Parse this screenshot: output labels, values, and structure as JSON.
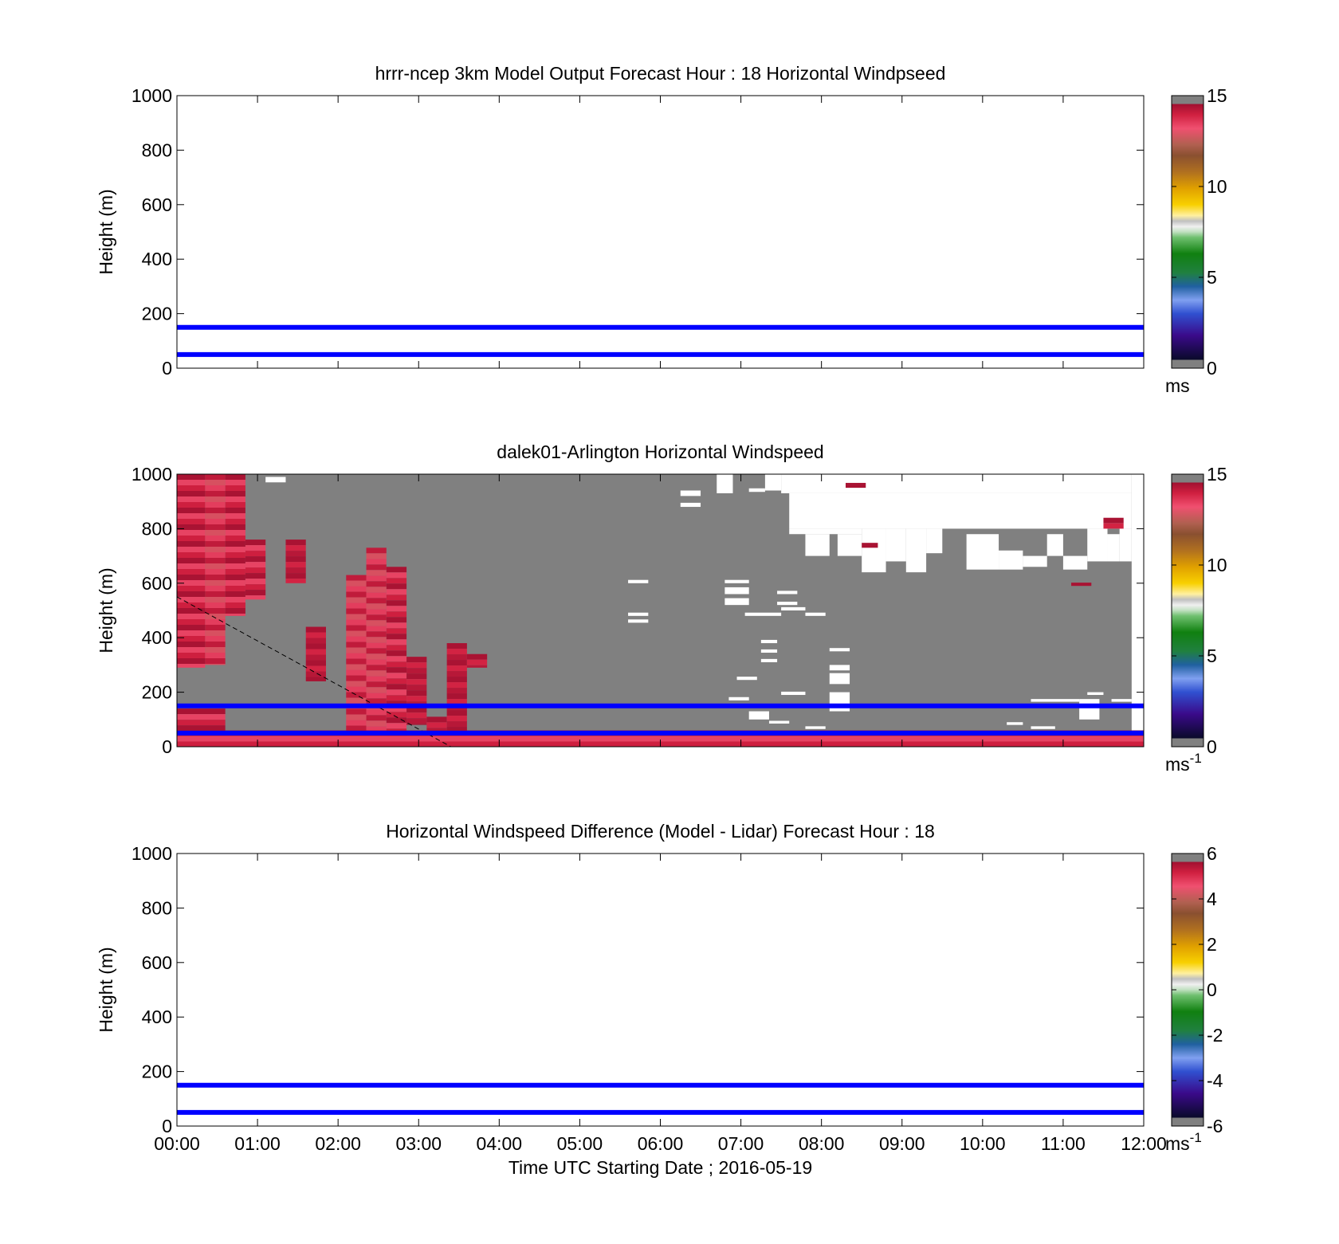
{
  "figure": {
    "xlabel": "Time UTC  Starting Date ; 2016-05-19",
    "x_tick_labels": [
      "00:00",
      "01:00",
      "02:00",
      "03:00",
      "04:00",
      "05:00",
      "06:00",
      "07:00",
      "08:00",
      "09:00",
      "10:00",
      "11:00",
      "12:00"
    ]
  },
  "chart_data": [
    {
      "type": "heatmap",
      "title": "hrrr-ncep 3km Model Output   Forecast Hour : 18 Horizontal Windpseed",
      "ylabel": "Height (m)",
      "ylim": [
        0,
        1000
      ],
      "yticks": [
        0,
        200,
        400,
        600,
        800,
        1000
      ],
      "xlim_hours": [
        0,
        12
      ],
      "colorbar": {
        "range": [
          0,
          15
        ],
        "ticks": [
          0,
          5,
          10,
          15
        ],
        "unit": "ms",
        "unit_superscript": ""
      },
      "reference_lines_m": [
        50,
        150
      ],
      "cells": []
    },
    {
      "type": "heatmap",
      "title": "dalek01-Arlington  Horizontal Windspeed",
      "ylabel": "Height (m)",
      "ylim": [
        0,
        1000
      ],
      "yticks": [
        0,
        200,
        400,
        600,
        800,
        1000
      ],
      "xlim_hours": [
        0,
        12
      ],
      "colorbar": {
        "range": [
          0,
          15
        ],
        "ticks": [
          0,
          5,
          10,
          15
        ],
        "unit": "ms",
        "unit_superscript": "-1"
      },
      "reference_lines_m": [
        50,
        150
      ],
      "background_region": {
        "x": [
          0,
          11.85
        ],
        "y": [
          0,
          1000
        ],
        "color": "#808080"
      },
      "white_gaps": [
        {
          "x": [
            1.1,
            1.35
          ],
          "y": [
            970,
            990
          ]
        },
        {
          "x": [
            6.25,
            6.5
          ],
          "y": [
            920,
            940
          ]
        },
        {
          "x": [
            6.25,
            6.5
          ],
          "y": [
            880,
            895
          ]
        },
        {
          "x": [
            6.7,
            6.9
          ],
          "y": [
            930,
            1000
          ]
        },
        {
          "x": [
            7.1,
            7.3
          ],
          "y": [
            935,
            948
          ]
        },
        {
          "x": [
            7.3,
            7.5
          ],
          "y": [
            940,
            1000
          ]
        },
        {
          "x": [
            7.5,
            11.85
          ],
          "y": [
            930,
            1000
          ]
        },
        {
          "x": [
            7.6,
            11.85
          ],
          "y": [
            800,
            930
          ]
        },
        {
          "x": [
            7.6,
            8.5
          ],
          "y": [
            780,
            800
          ]
        },
        {
          "x": [
            7.8,
            8.1
          ],
          "y": [
            700,
            780
          ]
        },
        {
          "x": [
            8.2,
            8.5
          ],
          "y": [
            700,
            780
          ]
        },
        {
          "x": [
            8.5,
            8.8
          ],
          "y": [
            640,
            800
          ]
        },
        {
          "x": [
            8.8,
            9.05
          ],
          "y": [
            680,
            800
          ]
        },
        {
          "x": [
            9.05,
            9.3
          ],
          "y": [
            640,
            800
          ]
        },
        {
          "x": [
            9.3,
            9.5
          ],
          "y": [
            710,
            800
          ]
        },
        {
          "x": [
            9.8,
            10.2
          ],
          "y": [
            650,
            780
          ]
        },
        {
          "x": [
            10.2,
            10.5
          ],
          "y": [
            650,
            720
          ]
        },
        {
          "x": [
            10.5,
            10.8
          ],
          "y": [
            660,
            700
          ]
        },
        {
          "x": [
            10.8,
            11.0
          ],
          "y": [
            700,
            780
          ]
        },
        {
          "x": [
            11.0,
            11.3
          ],
          "y": [
            650,
            700
          ]
        },
        {
          "x": [
            11.3,
            11.55
          ],
          "y": [
            680,
            800
          ]
        },
        {
          "x": [
            11.55,
            11.7
          ],
          "y": [
            680,
            780
          ]
        },
        {
          "x": [
            11.7,
            11.85
          ],
          "y": [
            680,
            800
          ]
        },
        {
          "x": [
            7.05,
            7.5
          ],
          "y": [
            480,
            492
          ]
        },
        {
          "x": [
            7.5,
            7.8
          ],
          "y": [
            500,
            512
          ]
        },
        {
          "x": [
            7.8,
            8.05
          ],
          "y": [
            480,
            492
          ]
        },
        {
          "x": [
            6.8,
            7.1
          ],
          "y": [
            520,
            545
          ]
        },
        {
          "x": [
            6.8,
            7.1
          ],
          "y": [
            560,
            585
          ]
        },
        {
          "x": [
            6.8,
            7.1
          ],
          "y": [
            600,
            612
          ]
        },
        {
          "x": [
            5.6,
            5.85
          ],
          "y": [
            600,
            612
          ]
        },
        {
          "x": [
            5.6,
            5.85
          ],
          "y": [
            480,
            492
          ]
        },
        {
          "x": [
            5.6,
            5.85
          ],
          "y": [
            455,
            467
          ]
        },
        {
          "x": [
            7.45,
            7.7
          ],
          "y": [
            560,
            572
          ]
        },
        {
          "x": [
            7.45,
            7.7
          ],
          "y": [
            520,
            532
          ]
        },
        {
          "x": [
            7.25,
            7.45
          ],
          "y": [
            380,
            392
          ]
        },
        {
          "x": [
            7.25,
            7.45
          ],
          "y": [
            345,
            357
          ]
        },
        {
          "x": [
            7.25,
            7.45
          ],
          "y": [
            310,
            322
          ]
        },
        {
          "x": [
            6.95,
            7.2
          ],
          "y": [
            245,
            257
          ]
        },
        {
          "x": [
            7.5,
            7.8
          ],
          "y": [
            190,
            202
          ]
        },
        {
          "x": [
            8.1,
            8.35
          ],
          "y": [
            130,
            200
          ]
        },
        {
          "x": [
            8.1,
            8.35
          ],
          "y": [
            230,
            270
          ]
        },
        {
          "x": [
            8.1,
            8.35
          ],
          "y": [
            280,
            300
          ]
        },
        {
          "x": [
            8.1,
            8.35
          ],
          "y": [
            350,
            362
          ]
        },
        {
          "x": [
            6.85,
            7.1
          ],
          "y": [
            170,
            182
          ]
        },
        {
          "x": [
            7.1,
            7.35
          ],
          "y": [
            100,
            130
          ]
        },
        {
          "x": [
            7.35,
            7.6
          ],
          "y": [
            85,
            95
          ]
        },
        {
          "x": [
            7.8,
            8.05
          ],
          "y": [
            65,
            75
          ]
        },
        {
          "x": [
            10.6,
            11.2
          ],
          "y": [
            165,
            175
          ]
        },
        {
          "x": [
            11.2,
            11.45
          ],
          "y": [
            100,
            175
          ]
        },
        {
          "x": [
            11.3,
            11.5
          ],
          "y": [
            190,
            200
          ]
        },
        {
          "x": [
            11.6,
            11.85
          ],
          "y": [
            165,
            175
          ]
        },
        {
          "x": [
            10.3,
            10.5
          ],
          "y": [
            80,
            90
          ]
        },
        {
          "x": [
            10.6,
            10.9
          ],
          "y": [
            65,
            75
          ]
        }
      ],
      "cells": [
        {
          "x": [
            0,
            0.35
          ],
          "y": [
            290,
            1000
          ],
          "value": 14
        },
        {
          "x": [
            0.35,
            0.6
          ],
          "y": [
            300,
            1000
          ],
          "value": 13.5
        },
        {
          "x": [
            0.6,
            0.85
          ],
          "y": [
            480,
            1000
          ],
          "value": 14
        },
        {
          "x": [
            0.85,
            1.1
          ],
          "y": [
            540,
            760
          ],
          "value": 14
        },
        {
          "x": [
            1.35,
            1.6
          ],
          "y": [
            600,
            760
          ],
          "value": 14.5
        },
        {
          "x": [
            1.6,
            1.85
          ],
          "y": [
            240,
            440
          ],
          "value": 14.5
        },
        {
          "x": [
            2.1,
            2.35
          ],
          "y": [
            20,
            630
          ],
          "value": 13.5
        },
        {
          "x": [
            2.35,
            2.6
          ],
          "y": [
            20,
            730
          ],
          "value": 13.5
        },
        {
          "x": [
            2.6,
            2.85
          ],
          "y": [
            20,
            660
          ],
          "value": 14
        },
        {
          "x": [
            2.85,
            3.1
          ],
          "y": [
            80,
            330
          ],
          "value": 14.5
        },
        {
          "x": [
            3.1,
            3.35
          ],
          "y": [
            60,
            110
          ],
          "value": 14.5
        },
        {
          "x": [
            3.35,
            3.6
          ],
          "y": [
            20,
            380
          ],
          "value": 14.5
        },
        {
          "x": [
            3.6,
            3.85
          ],
          "y": [
            290,
            340
          ],
          "value": 14.5
        },
        {
          "x": [
            0,
            0.6
          ],
          "y": [
            20,
            140
          ],
          "value": 14
        },
        {
          "x": [
            0,
            12
          ],
          "y": [
            0,
            60
          ],
          "value": 14
        },
        {
          "x": [
            8.5,
            8.7
          ],
          "y": [
            730,
            748
          ],
          "value": 14.5
        },
        {
          "x": [
            8.3,
            8.55
          ],
          "y": [
            950,
            968
          ],
          "value": 14.5
        },
        {
          "x": [
            11.5,
            11.75
          ],
          "y": [
            800,
            840
          ],
          "value": 14.5
        },
        {
          "x": [
            11.1,
            11.35
          ],
          "y": [
            590,
            602
          ],
          "value": 14.5
        }
      ],
      "dashed_line": {
        "x": [
          0,
          3.4
        ],
        "y": [
          550,
          0
        ]
      }
    },
    {
      "type": "heatmap",
      "title": "Horizontal Windspeed Difference (Model - Lidar) Forecast Hour : 18",
      "ylabel": "Height (m)",
      "ylim": [
        0,
        1000
      ],
      "yticks": [
        0,
        200,
        400,
        600,
        800,
        1000
      ],
      "xlim_hours": [
        0,
        12
      ],
      "colorbar": {
        "range": [
          -6,
          6
        ],
        "ticks": [
          -6,
          -4,
          -2,
          0,
          2,
          4,
          6
        ],
        "unit": "ms",
        "unit_superscript": "-1"
      },
      "reference_lines_m": [
        50,
        150
      ],
      "cells": []
    }
  ]
}
